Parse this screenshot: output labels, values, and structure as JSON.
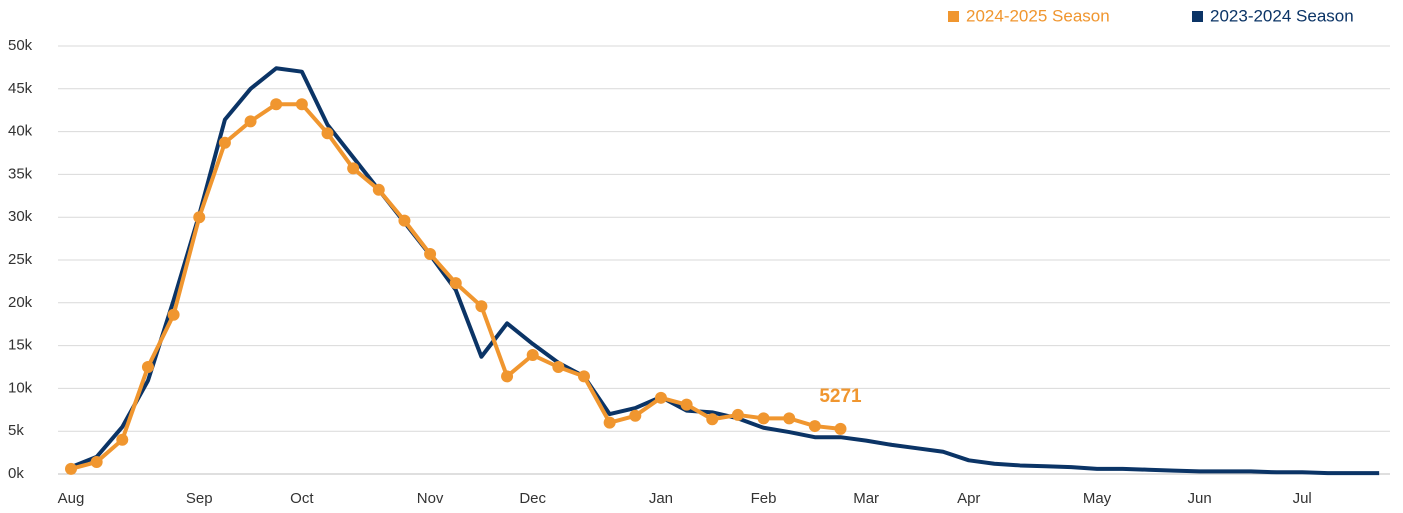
{
  "chart_data": {
    "type": "line",
    "categories": [
      "Aug",
      null,
      null,
      null,
      null,
      "Sep",
      null,
      null,
      null,
      "Oct",
      null,
      null,
      null,
      null,
      "Nov",
      null,
      null,
      null,
      "Dec",
      null,
      null,
      null,
      null,
      "Jan",
      null,
      null,
      null,
      "Feb",
      null,
      null,
      null,
      "Mar",
      null,
      null,
      null,
      "Apr",
      null,
      null,
      null,
      null,
      "May",
      null,
      null,
      null,
      "Jun",
      null,
      null,
      null,
      "Jul",
      null,
      null,
      null
    ],
    "series": [
      {
        "name": "2024-2025 Season",
        "color": "#f0962f",
        "markers": true,
        "values": [
          600,
          1400,
          4000,
          12500,
          18600,
          30000,
          38700,
          41200,
          43200,
          43200,
          39800,
          35700,
          33200,
          29600,
          25700,
          22300,
          19600,
          11400,
          13900,
          12500,
          11400,
          6000,
          6800,
          8900,
          8100,
          6400,
          6900,
          6500,
          6500,
          5600,
          5271,
          null,
          null,
          null,
          null,
          null,
          null,
          null,
          null,
          null,
          null,
          null,
          null,
          null,
          null,
          null,
          null,
          null,
          null,
          null,
          null,
          null
        ]
      },
      {
        "name": "2023-2024 Season",
        "color": "#0b3466",
        "markers": false,
        "values": [
          800,
          2000,
          5500,
          10900,
          20300,
          30300,
          41400,
          45000,
          47400,
          47000,
          40800,
          37000,
          33200,
          29400,
          25600,
          21500,
          13700,
          17600,
          15200,
          13000,
          11400,
          7000,
          7700,
          9000,
          7400,
          7200,
          6500,
          5400,
          4900,
          4300,
          4300,
          3900,
          3400,
          3000,
          2600,
          1600,
          1200,
          1000,
          900,
          800,
          600,
          600,
          500,
          400,
          300,
          300,
          300,
          200,
          200,
          100,
          100,
          100
        ]
      }
    ],
    "annotation_index": 30,
    "ylim": [
      0,
      50000
    ],
    "yticks": [
      {
        "value": 0,
        "label": "0k"
      },
      {
        "value": 5000,
        "label": "5k"
      },
      {
        "value": 10000,
        "label": "10k"
      },
      {
        "value": 15000,
        "label": "15k"
      },
      {
        "value": 20000,
        "label": "20k"
      },
      {
        "value": 25000,
        "label": "25k"
      },
      {
        "value": 30000,
        "label": "30k"
      },
      {
        "value": 35000,
        "label": "35k"
      },
      {
        "value": 40000,
        "label": "40k"
      },
      {
        "value": 45000,
        "label": "45k"
      },
      {
        "value": 50000,
        "label": "50k"
      }
    ],
    "grid": true,
    "legend": "top-right"
  }
}
